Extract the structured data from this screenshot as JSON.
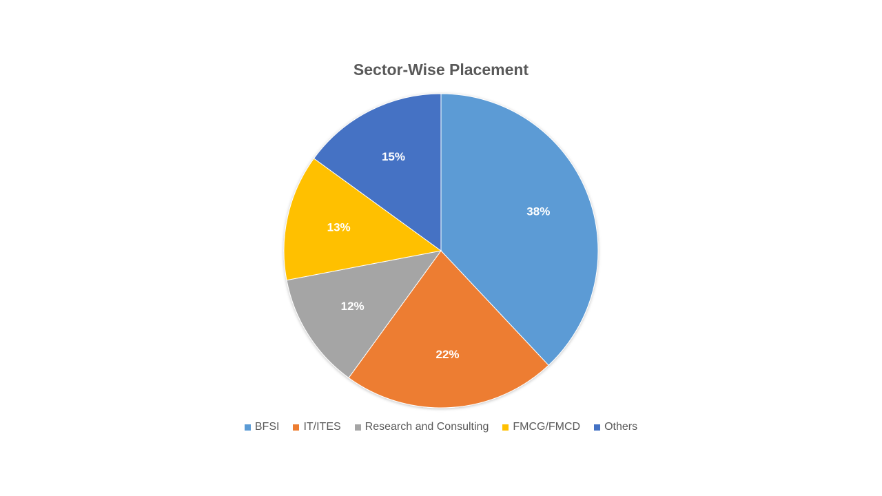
{
  "chart_data": {
    "type": "pie",
    "title": "Sector-Wise Placement",
    "categories": [
      "BFSI",
      "IT/ITES",
      "Research and Consulting",
      "FMCG/FMCD",
      "Others"
    ],
    "values": [
      38,
      22,
      12,
      13,
      15
    ],
    "data_labels": [
      "38%",
      "22%",
      "12%",
      "13%",
      "15%"
    ],
    "colors": [
      "#5B9BD5",
      "#ED7D31",
      "#A5A5A5",
      "#FFC000",
      "#4472C4"
    ],
    "start_angle": "12 o'clock",
    "direction": "clockwise",
    "legend_position": "bottom"
  }
}
